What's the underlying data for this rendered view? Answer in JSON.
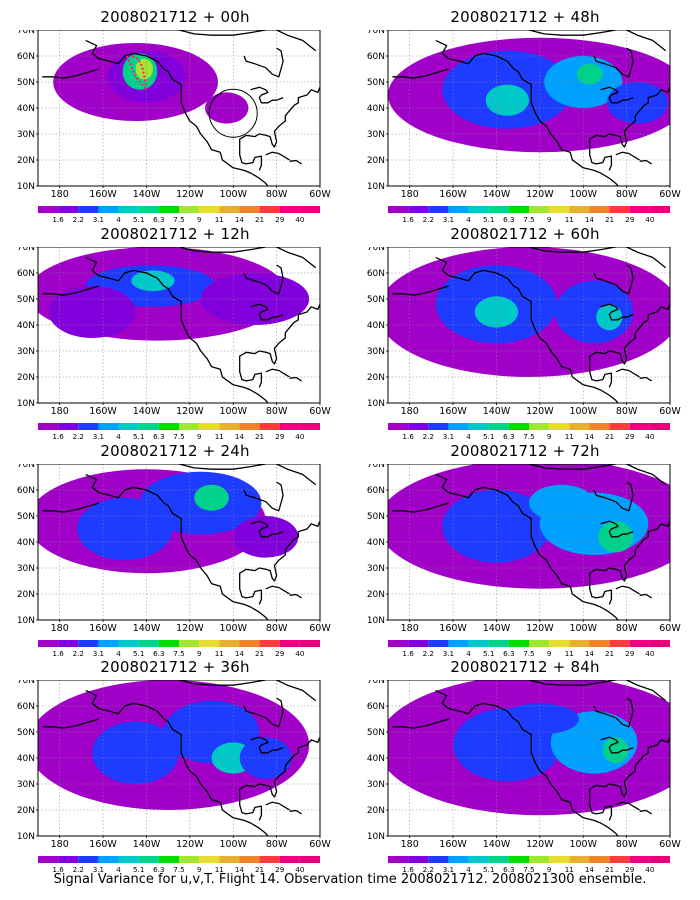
{
  "panels": [
    {
      "title": "2008021712 + 00h",
      "lead": "00h"
    },
    {
      "title": "2008021712 + 48h",
      "lead": "48h"
    },
    {
      "title": "2008021712 + 12h",
      "lead": "12h"
    },
    {
      "title": "2008021712 + 60h",
      "lead": "60h"
    },
    {
      "title": "2008021712 + 24h",
      "lead": "24h"
    },
    {
      "title": "2008021712 + 72h",
      "lead": "72h"
    },
    {
      "title": "2008021712 + 36h",
      "lead": "36h"
    },
    {
      "title": "2008021712 + 84h",
      "lead": "84h"
    }
  ],
  "map": {
    "lat_labels": [
      "70N",
      "60N",
      "50N",
      "40N",
      "30N",
      "20N",
      "10N"
    ],
    "lon_labels": [
      "180",
      "160W",
      "140W",
      "120W",
      "100W",
      "80W",
      "60W"
    ],
    "lat_range": [
      10,
      70
    ],
    "lon_range": [
      -190,
      -60
    ],
    "grid": true
  },
  "colorbar": {
    "labels": [
      "1.6",
      "2.2",
      "3.1",
      "4",
      "5.1",
      "6.3",
      "7.5",
      "9",
      "11",
      "14",
      "21",
      "29",
      "40"
    ],
    "colors": [
      "#a000c8",
      "#8200dc",
      "#1e3cff",
      "#00a0ff",
      "#00c8c8",
      "#00d28c",
      "#00dc00",
      "#a0e632",
      "#e6dc32",
      "#e6af2d",
      "#f08228",
      "#fa3c3c",
      "#f00082"
    ]
  },
  "caption": "Signal Variance for u,v,T. Flight 14. Observation time 2008021712. 2008021300 ensemble."
}
